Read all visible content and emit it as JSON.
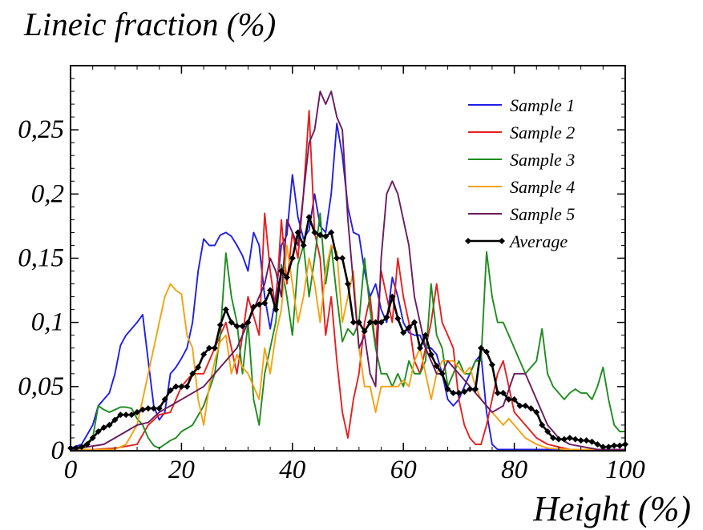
{
  "chart_data": {
    "type": "line",
    "title": "Lineic fraction (%)",
    "xlabel": "Height (%)",
    "ylabel": "",
    "xlim": [
      0,
      100
    ],
    "ylim": [
      0,
      0.3
    ],
    "xticks": [
      0,
      20,
      40,
      60,
      80,
      100
    ],
    "xtick_labels": [
      "0",
      "20",
      "40",
      "60",
      "80",
      "100"
    ],
    "yticks": [
      0,
      0.05,
      0.1,
      0.15,
      0.2,
      0.25
    ],
    "ytick_labels": [
      "0",
      "0,05",
      "0,1",
      "0,15",
      "0,2",
      "0,25"
    ],
    "grid": false,
    "legend_position": "top-right",
    "series": [
      {
        "name": "Sample 1",
        "color": "#1f1fe6",
        "x": [
          0,
          2,
          4,
          5,
          6,
          7,
          8,
          9,
          10,
          11,
          12,
          13,
          14,
          15,
          16,
          17,
          18,
          19,
          20,
          21,
          22,
          23,
          24,
          25,
          26,
          27,
          28,
          29,
          30,
          31,
          32,
          33,
          34,
          35,
          36,
          37,
          38,
          39,
          40,
          41,
          42,
          43,
          44,
          45,
          46,
          47,
          48,
          49,
          50,
          51,
          52,
          53,
          54,
          55,
          56,
          57,
          58,
          59,
          60,
          61,
          62,
          63,
          64,
          65,
          66,
          67,
          68,
          69,
          70,
          71,
          72,
          73,
          74,
          75,
          76,
          77,
          78,
          80,
          85,
          90,
          95,
          100
        ],
        "y": [
          0.002,
          0.005,
          0.02,
          0.035,
          0.04,
          0.045,
          0.06,
          0.082,
          0.09,
          0.095,
          0.1,
          0.106,
          0.07,
          0.035,
          0.024,
          0.03,
          0.06,
          0.065,
          0.072,
          0.08,
          0.1,
          0.14,
          0.165,
          0.16,
          0.16,
          0.168,
          0.17,
          0.167,
          0.16,
          0.152,
          0.14,
          0.17,
          0.16,
          0.12,
          0.095,
          0.12,
          0.16,
          0.168,
          0.215,
          0.182,
          0.165,
          0.172,
          0.2,
          0.175,
          0.17,
          0.2,
          0.255,
          0.23,
          0.19,
          0.17,
          0.168,
          0.14,
          0.12,
          0.13,
          0.11,
          0.1,
          0.135,
          0.12,
          0.1,
          0.092,
          0.09,
          0.09,
          0.08,
          0.08,
          0.075,
          0.06,
          0.04,
          0.035,
          0.04,
          0.05,
          0.06,
          0.07,
          0.075,
          0.03,
          0.005,
          0.001,
          0.001,
          0.001,
          0.001,
          0.001,
          0.001,
          0.001
        ]
      },
      {
        "name": "Sample 2",
        "color": "#e61f1f",
        "x": [
          0,
          4,
          8,
          12,
          14,
          16,
          18,
          20,
          22,
          24,
          26,
          28,
          30,
          32,
          34,
          35,
          36,
          37,
          38,
          39,
          40,
          41,
          42,
          43,
          44,
          45,
          46,
          47,
          48,
          49,
          50,
          51,
          52,
          53,
          54,
          55,
          56,
          57,
          58,
          59,
          60,
          61,
          62,
          63,
          64,
          65,
          66,
          67,
          68,
          69,
          70,
          71,
          72,
          73,
          74,
          75,
          76,
          77,
          78,
          79,
          80,
          82,
          84,
          86,
          90,
          95,
          100
        ],
        "y": [
          0.001,
          0.001,
          0.002,
          0.005,
          0.02,
          0.028,
          0.03,
          0.05,
          0.06,
          0.06,
          0.08,
          0.1,
          0.06,
          0.12,
          0.09,
          0.185,
          0.14,
          0.11,
          0.18,
          0.13,
          0.17,
          0.15,
          0.2,
          0.265,
          0.17,
          0.15,
          0.09,
          0.12,
          0.07,
          0.03,
          0.01,
          0.04,
          0.06,
          0.1,
          0.12,
          0.08,
          0.14,
          0.12,
          0.1,
          0.15,
          0.12,
          0.1,
          0.07,
          0.06,
          0.08,
          0.1,
          0.13,
          0.1,
          0.09,
          0.08,
          0.04,
          0.02,
          0.01,
          0.005,
          0.005,
          0.02,
          0.04,
          0.06,
          0.07,
          0.05,
          0.03,
          0.02,
          0.01,
          0.005,
          0.001,
          0.001,
          0.001
        ]
      },
      {
        "name": "Sample 3",
        "color": "#1f8c1f",
        "x": [
          0,
          2,
          4,
          5,
          6,
          7,
          8,
          9,
          10,
          11,
          12,
          13,
          14,
          15,
          16,
          17,
          18,
          19,
          20,
          22,
          24,
          26,
          27,
          28,
          29,
          30,
          31,
          32,
          33,
          34,
          35,
          36,
          37,
          38,
          39,
          40,
          41,
          42,
          43,
          44,
          45,
          46,
          47,
          48,
          49,
          50,
          51,
          52,
          53,
          54,
          55,
          56,
          57,
          58,
          59,
          60,
          61,
          62,
          63,
          64,
          65,
          66,
          67,
          68,
          69,
          70,
          71,
          72,
          73,
          74,
          75,
          76,
          77,
          78,
          80,
          82,
          84,
          85,
          86,
          87,
          88,
          89,
          90,
          91,
          92,
          93,
          94,
          95,
          96,
          97,
          98,
          99,
          100
        ],
        "y": [
          0.002,
          0.003,
          0.01,
          0.035,
          0.032,
          0.03,
          0.032,
          0.034,
          0.034,
          0.033,
          0.025,
          0.02,
          0.01,
          0.004,
          0.002,
          0.005,
          0.008,
          0.01,
          0.015,
          0.02,
          0.035,
          0.06,
          0.09,
          0.154,
          0.12,
          0.1,
          0.06,
          0.1,
          0.04,
          0.02,
          0.06,
          0.08,
          0.1,
          0.145,
          0.12,
          0.09,
          0.145,
          0.16,
          0.12,
          0.15,
          0.185,
          0.13,
          0.16,
          0.12,
          0.085,
          0.095,
          0.09,
          0.1,
          0.15,
          0.11,
          0.08,
          0.06,
          0.06,
          0.05,
          0.06,
          0.05,
          0.07,
          0.06,
          0.06,
          0.07,
          0.13,
          0.09,
          0.08,
          0.05,
          0.06,
          0.07,
          0.06,
          0.06,
          0.07,
          0.07,
          0.155,
          0.12,
          0.1,
          0.1,
          0.08,
          0.06,
          0.07,
          0.095,
          0.06,
          0.05,
          0.045,
          0.04,
          0.045,
          0.048,
          0.045,
          0.045,
          0.04,
          0.05,
          0.065,
          0.04,
          0.02,
          0.015,
          0.015
        ]
      },
      {
        "name": "Sample 4",
        "color": "#f5a20f",
        "x": [
          0,
          8,
          10,
          12,
          13,
          14,
          15,
          16,
          17,
          18,
          19,
          20,
          21,
          22,
          23,
          24,
          25,
          26,
          27,
          28,
          29,
          30,
          31,
          32,
          33,
          34,
          35,
          36,
          37,
          38,
          39,
          40,
          41,
          42,
          43,
          44,
          45,
          46,
          47,
          48,
          49,
          50,
          51,
          52,
          53,
          54,
          55,
          56,
          57,
          58,
          59,
          60,
          61,
          62,
          63,
          64,
          65,
          66,
          67,
          68,
          69,
          70,
          71,
          72,
          73,
          74,
          75,
          76,
          77,
          78,
          79,
          80,
          81,
          82,
          84,
          86,
          90,
          95,
          100
        ],
        "y": [
          0.001,
          0.001,
          0.005,
          0.02,
          0.04,
          0.06,
          0.08,
          0.1,
          0.12,
          0.13,
          0.125,
          0.122,
          0.09,
          0.08,
          0.04,
          0.02,
          0.05,
          0.07,
          0.085,
          0.09,
          0.06,
          0.075,
          0.065,
          0.06,
          0.05,
          0.04,
          0.08,
          0.06,
          0.09,
          0.11,
          0.16,
          0.13,
          0.1,
          0.12,
          0.15,
          0.13,
          0.1,
          0.14,
          0.16,
          0.155,
          0.1,
          0.12,
          0.14,
          0.08,
          0.05,
          0.05,
          0.03,
          0.05,
          0.05,
          0.05,
          0.05,
          0.055,
          0.05,
          0.07,
          0.08,
          0.06,
          0.04,
          0.06,
          0.07,
          0.07,
          0.07,
          0.065,
          0.06,
          0.065,
          0.05,
          0.04,
          0.035,
          0.03,
          0.025,
          0.02,
          0.025,
          0.02,
          0.015,
          0.01,
          0.005,
          0.002,
          0.001,
          0.001,
          0.001
        ]
      },
      {
        "name": "Sample 5",
        "color": "#6b1a5e",
        "x": [
          0,
          6,
          8,
          10,
          12,
          14,
          16,
          18,
          20,
          22,
          24,
          26,
          28,
          30,
          32,
          34,
          35,
          36,
          37,
          38,
          39,
          40,
          41,
          42,
          43,
          44,
          45,
          46,
          47,
          48,
          49,
          50,
          51,
          52,
          53,
          54,
          55,
          56,
          57,
          58,
          59,
          60,
          61,
          62,
          63,
          64,
          65,
          66,
          67,
          68,
          69,
          70,
          72,
          74,
          76,
          78,
          80,
          82,
          84,
          86,
          88,
          90,
          95,
          100
        ],
        "y": [
          0.001,
          0.005,
          0.01,
          0.015,
          0.02,
          0.022,
          0.03,
          0.035,
          0.04,
          0.045,
          0.05,
          0.06,
          0.07,
          0.08,
          0.1,
          0.12,
          0.13,
          0.15,
          0.14,
          0.12,
          0.18,
          0.17,
          0.16,
          0.2,
          0.24,
          0.25,
          0.28,
          0.27,
          0.28,
          0.26,
          0.25,
          0.18,
          0.13,
          0.08,
          0.09,
          0.06,
          0.05,
          0.15,
          0.2,
          0.21,
          0.2,
          0.18,
          0.16,
          0.12,
          0.1,
          0.08,
          0.07,
          0.06,
          0.06,
          0.07,
          0.065,
          0.06,
          0.05,
          0.04,
          0.03,
          0.035,
          0.06,
          0.06,
          0.04,
          0.02,
          0.01,
          0.005,
          0.001,
          0.001
        ]
      },
      {
        "name": "Average",
        "color": "#000000",
        "marker": "diamond",
        "x": [
          0,
          1,
          2,
          3,
          4,
          5,
          6,
          7,
          8,
          9,
          10,
          11,
          12,
          13,
          14,
          15,
          16,
          17,
          18,
          19,
          20,
          21,
          22,
          23,
          24,
          25,
          26,
          27,
          28,
          29,
          30,
          31,
          32,
          33,
          34,
          35,
          36,
          37,
          38,
          39,
          40,
          41,
          42,
          43,
          44,
          45,
          46,
          47,
          48,
          49,
          50,
          51,
          52,
          53,
          54,
          55,
          56,
          57,
          58,
          59,
          60,
          61,
          62,
          63,
          64,
          65,
          66,
          67,
          68,
          69,
          70,
          71,
          72,
          73,
          74,
          75,
          76,
          77,
          78,
          79,
          80,
          81,
          82,
          83,
          84,
          85,
          86,
          87,
          88,
          89,
          90,
          91,
          92,
          93,
          94,
          95,
          96,
          97,
          98,
          99,
          100
        ],
        "y": [
          0.002,
          0.002,
          0.003,
          0.005,
          0.01,
          0.015,
          0.018,
          0.02,
          0.024,
          0.028,
          0.028,
          0.028,
          0.03,
          0.032,
          0.033,
          0.033,
          0.033,
          0.04,
          0.047,
          0.05,
          0.05,
          0.05,
          0.06,
          0.065,
          0.075,
          0.08,
          0.08,
          0.098,
          0.11,
          0.1,
          0.097,
          0.097,
          0.1,
          0.112,
          0.114,
          0.115,
          0.125,
          0.11,
          0.14,
          0.135,
          0.15,
          0.17,
          0.16,
          0.182,
          0.17,
          0.168,
          0.167,
          0.17,
          0.15,
          0.15,
          0.13,
          0.1,
          0.1,
          0.093,
          0.1,
          0.1,
          0.1,
          0.104,
          0.12,
          0.103,
          0.092,
          0.096,
          0.1,
          0.08,
          0.09,
          0.075,
          0.066,
          0.06,
          0.048,
          0.045,
          0.045,
          0.046,
          0.048,
          0.048,
          0.08,
          0.077,
          0.067,
          0.045,
          0.045,
          0.04,
          0.04,
          0.035,
          0.035,
          0.033,
          0.03,
          0.02,
          0.015,
          0.01,
          0.009,
          0.009,
          0.01,
          0.009,
          0.008,
          0.008,
          0.007,
          0.005,
          0.003,
          0.003,
          0.004,
          0.004,
          0.005
        ]
      }
    ]
  }
}
